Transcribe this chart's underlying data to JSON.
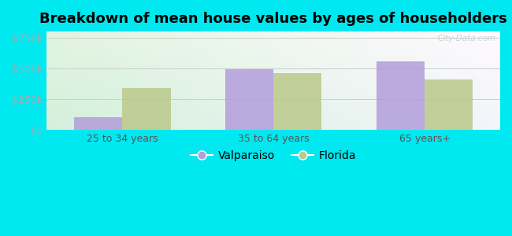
{
  "title": "Breakdown of mean house values by ages of householders",
  "categories": [
    "25 to 34 years",
    "35 to 64 years",
    "65 years+"
  ],
  "valparaiso": [
    105000,
    490000,
    555000
  ],
  "florida": [
    340000,
    460000,
    410000
  ],
  "valparaiso_color": "#b39ddb",
  "florida_color": "#bbc98a",
  "background_outer": "#00e8f0",
  "ylabel_ticks": [
    "$0",
    "$250k",
    "$500k",
    "$750k"
  ],
  "ytick_vals": [
    0,
    250000,
    500000,
    750000
  ],
  "ylim": [
    0,
    800000
  ],
  "bar_width": 0.32,
  "legend_labels": [
    "Valparaiso",
    "Florida"
  ],
  "title_fontsize": 13,
  "tick_fontsize": 9,
  "legend_fontsize": 10
}
